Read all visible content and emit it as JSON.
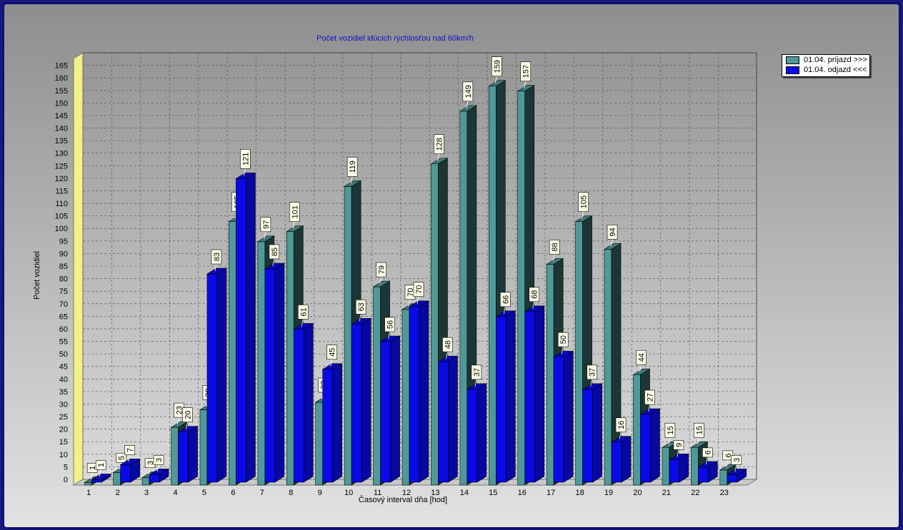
{
  "chart_data": {
    "type": "bar",
    "title": "Počet vozidiel idúcich rýchlosťou nad 60km/h",
    "xlabel": "Časový interval dňa [hod]",
    "ylabel": "Počet vozidiel",
    "ylim": [
      0,
      170
    ],
    "ytick_step": 5,
    "grid": true,
    "legend_position": "top-right",
    "categories": [
      "1",
      "2",
      "3",
      "4",
      "5",
      "6",
      "7",
      "8",
      "9",
      "10",
      "11",
      "12",
      "13",
      "14",
      "15",
      "16",
      "17",
      "18",
      "19",
      "20",
      "21",
      "22",
      "23"
    ],
    "series": [
      {
        "name": "01.04.  príjazd >>>",
        "color": "#4f9a97",
        "values": [
          1,
          5,
          3,
          23,
          30,
          105,
          97,
          101,
          33,
          119,
          79,
          70,
          128,
          149,
          159,
          157,
          88,
          105,
          94,
          44,
          15,
          15,
          6
        ]
      },
      {
        "name": "01.04.  odjazd <<<",
        "color": "#0a0ae6",
        "values": [
          1,
          7,
          3,
          20,
          83,
          121,
          85,
          61,
          45,
          63,
          56,
          70,
          48,
          37,
          66,
          68,
          50,
          37,
          16,
          27,
          9,
          6,
          3
        ]
      }
    ]
  },
  "colors": {
    "floor_wall": "#f3f08a",
    "grid_line": "#505050"
  }
}
